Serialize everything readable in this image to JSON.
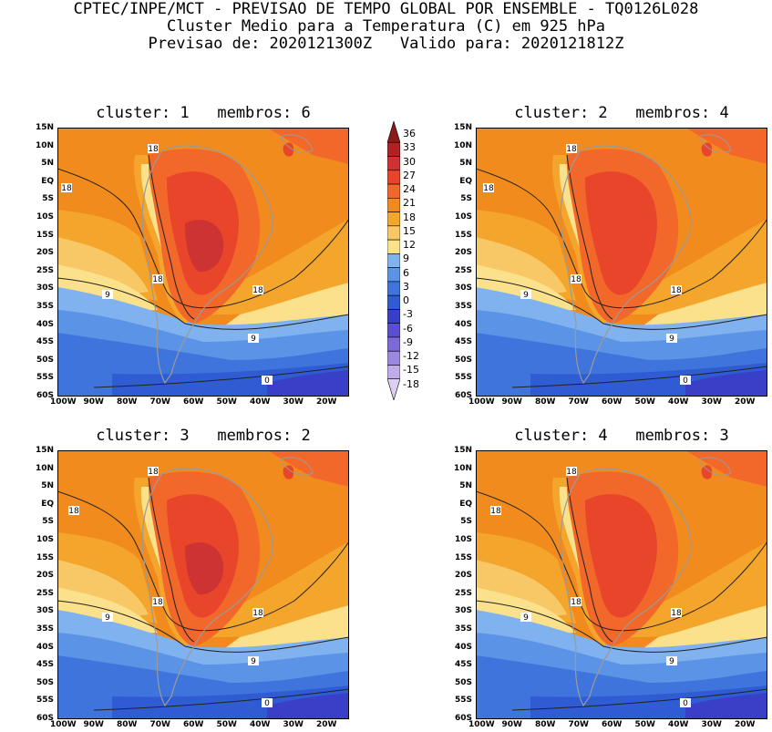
{
  "header": {
    "line1": "CPTEC/INPE/MCT - PREVISAO DE TEMPO GLOBAL POR ENSEMBLE - TQ0126L028",
    "line2": "Cluster Medio para a Temperatura (C) em 925 hPa",
    "line3": "Previsao de: 2020121300Z   Valido para: 2020121812Z"
  },
  "panels": [
    {
      "title": "cluster: 1   membros: 6"
    },
    {
      "title": "cluster: 2   membros: 4"
    },
    {
      "title": "cluster: 3   membros: 2"
    },
    {
      "title": "cluster: 4   membros: 3"
    }
  ],
  "lat_labels": [
    "15N",
    "10N",
    "5N",
    "EQ",
    "5S",
    "10S",
    "15S",
    "20S",
    "25S",
    "30S",
    "35S",
    "40S",
    "45S",
    "50S",
    "55S",
    "60S"
  ],
  "lon_labels": [
    "100W",
    "90W",
    "80W",
    "70W",
    "60W",
    "50W",
    "40W",
    "30W",
    "20W"
  ],
  "colorbar": {
    "labels": [
      "36",
      "33",
      "30",
      "27",
      "24",
      "21",
      "18",
      "15",
      "12",
      "9",
      "6",
      "3",
      "0",
      "-3",
      "-6",
      "-9",
      "-12",
      "-15",
      "-18"
    ],
    "colors": [
      "#8b1a1a",
      "#b22222",
      "#cd3333",
      "#e8452a",
      "#f2682a",
      "#f28b1e",
      "#f4a52c",
      "#f9c866",
      "#fbe18c",
      "#7fb2ee",
      "#5b93e6",
      "#3f74dd",
      "#2f5bd3",
      "#3a3fc8",
      "#5a4fd0",
      "#7d6ad8",
      "#9d88e0",
      "#bfaaea",
      "#dccdf2"
    ]
  },
  "contour_labels": {
    "p1": [
      "18",
      "18",
      "18",
      "18",
      "9",
      "9",
      "0"
    ],
    "p2": [
      "18",
      "18",
      "18",
      "18",
      "9",
      "9",
      "0"
    ],
    "p3": [
      "18",
      "18",
      "18",
      "18",
      "9",
      "9",
      "0"
    ],
    "p4": [
      "18",
      "18",
      "18",
      "18",
      "9",
      "9",
      "0"
    ]
  }
}
